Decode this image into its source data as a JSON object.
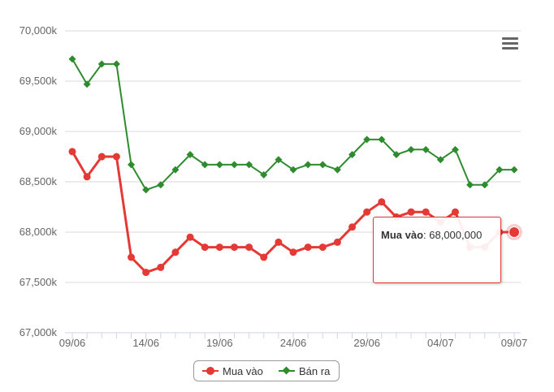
{
  "chart_data": {
    "type": "line",
    "title": "",
    "xlabel": "",
    "ylabel": "",
    "ylim": [
      67000,
      70000
    ],
    "y_ticks": [
      "67,000k",
      "67,500k",
      "68,000k",
      "68,500k",
      "69,000k",
      "69,500k",
      "70,000k"
    ],
    "y_tick_values": [
      67000,
      67500,
      68000,
      68500,
      69000,
      69500,
      70000
    ],
    "x_tick_labels": [
      "09/06",
      "14/06",
      "19/06",
      "24/06",
      "29/06",
      "04/07",
      "09/07"
    ],
    "x_tick_indices": [
      0,
      5,
      10,
      15,
      20,
      25,
      30
    ],
    "grid": true,
    "legend_position": "bottom",
    "series": [
      {
        "name": "Mua vào",
        "color": "#e53935",
        "marker": "circle",
        "values": [
          68800,
          68550,
          68750,
          68750,
          67750,
          67600,
          67650,
          67800,
          67950,
          67850,
          67850,
          67850,
          67850,
          67750,
          67900,
          67800,
          67850,
          67850,
          67900,
          68050,
          68200,
          68300,
          68150,
          68200,
          68200,
          68100,
          68200,
          67850,
          67850,
          68000,
          68000
        ]
      },
      {
        "name": "Bán ra",
        "color": "#2e8b2e",
        "marker": "diamond",
        "values": [
          69720,
          69470,
          69670,
          69670,
          68670,
          68420,
          68470,
          68620,
          68770,
          68670,
          68670,
          68670,
          68670,
          68570,
          68720,
          68620,
          68670,
          68670,
          68620,
          68770,
          68920,
          68920,
          68770,
          68820,
          68820,
          68720,
          68820,
          68470,
          68470,
          68620,
          68620
        ]
      }
    ],
    "tooltip": {
      "series_name": "Mua vào",
      "value_text": "68,000,000",
      "point_index": 30
    }
  }
}
